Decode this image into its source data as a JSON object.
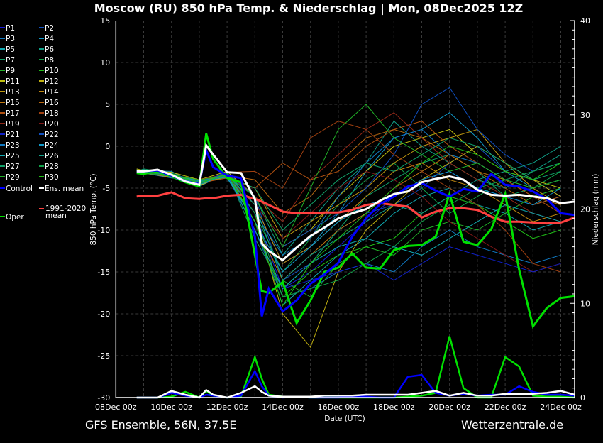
{
  "title": "Moscow  (RU)  850 hPa Temp. & Niederschlag | Mon, 08Dec2025 12Z",
  "footer_left": "GFS Ensemble, 56N, 37.5E",
  "footer_right": "Wetterzentrale.de",
  "chart_data": {
    "type": "line",
    "title": "Moscow  (RU)  850 hPa Temp. & Niederschlag | Mon, 08Dec2025 12Z",
    "xlabel": "Date (UTC)",
    "ylabel": "850 hPa Temp. (°C)",
    "y2label": "Niederschlag (mm)",
    "ylim": [
      -30,
      15
    ],
    "y2lim": [
      0,
      40
    ],
    "yticks": [
      "15",
      "10",
      "5",
      "0",
      "-5",
      "-10",
      "-15",
      "-20",
      "-25",
      "-30"
    ],
    "y2ticks": [
      "40",
      "30",
      "20",
      "10",
      "0"
    ],
    "xticks": [
      "08Dec 00z",
      "10Dec 00z",
      "12Dec 00z",
      "14Dec 00z",
      "16Dec 00z",
      "18Dec 00z",
      "20Dec 00z",
      "22Dec 00z",
      "24Dec 00z"
    ],
    "grid": true,
    "legend_position": "left",
    "x": [
      "08Dec 18z",
      "09Dec 00z",
      "09Dec 12z",
      "10Dec 00z",
      "10Dec 12z",
      "11Dec 00z",
      "11Dec 06z",
      "11Dec 12z",
      "12Dec 00z",
      "12Dec 12z",
      "13Dec 00z",
      "13Dec 06z",
      "13Dec 12z",
      "14Dec 00z",
      "14Dec 12z",
      "15Dec 00z",
      "15Dec 12z",
      "16Dec 00z",
      "16Dec 12z",
      "17Dec 00z",
      "17Dec 12z",
      "18Dec 00z",
      "18Dec 12z",
      "19Dec 00z",
      "19Dec 12z",
      "20Dec 00z",
      "20Dec 12z",
      "21Dec 00z",
      "21Dec 12z",
      "22Dec 00z",
      "22Dec 12z",
      "23Dec 00z",
      "23Dec 12z",
      "24Dec 00z",
      "24Dec 12z"
    ],
    "series": [
      {
        "name": "1991-2020 mean",
        "color": "#ff4040",
        "temp": [
          -6.0,
          -5.9,
          -5.9,
          -5.5,
          -6.2,
          -6.3,
          -6.2,
          -6.2,
          -5.9,
          -5.8,
          -6.3,
          -6.6,
          -7.0,
          -7.8,
          -8.0,
          -8.0,
          -7.9,
          -7.9,
          -7.6,
          -7.0,
          -6.8,
          -7.0,
          -7.2,
          -8.5,
          -7.8,
          -7.4,
          -7.4,
          -7.6,
          -8.4,
          -9.0,
          -9.0,
          -9.1,
          -9.2,
          -9.1,
          -8.5
        ]
      },
      {
        "name": "Oper",
        "color": "#00e000",
        "temp": [
          -3.2,
          -3.3,
          -3.0,
          -3.6,
          -4.3,
          -4.8,
          1.5,
          -1.5,
          -3.8,
          -4.3,
          -13.0,
          -17.3,
          -17.5,
          -16.2,
          -21.1,
          -18.4,
          -15.0,
          -14.5,
          -12.8,
          -14.5,
          -14.6,
          -12.4,
          -11.9,
          -11.8,
          -10.8,
          -5.7,
          -11.4,
          -11.8,
          -9.9,
          -5.7,
          -14.7,
          -21.5,
          -19.3,
          -18.1,
          -17.9
        ],
        "precip": [
          0,
          0,
          0,
          0.1,
          0.6,
          0,
          0.7,
          0.2,
          0,
          0.1,
          4.3,
          2,
          0.3,
          0.1,
          0.1,
          0,
          0,
          0,
          0,
          0,
          0,
          0,
          0.1,
          0.2,
          0.5,
          6.5,
          1,
          0,
          0,
          4.3,
          3.3,
          0.2,
          0.1,
          0.1,
          0
        ]
      },
      {
        "name": "Control",
        "color": "#0000ff",
        "temp": [
          -3.0,
          -3.0,
          -2.9,
          -3.5,
          -4.2,
          -4.5,
          -0.5,
          -2.5,
          -3.5,
          -3.8,
          -10.8,
          -20.3,
          -17.0,
          -19.7,
          -18.4,
          -16.4,
          -15.3,
          -13.9,
          -10.8,
          -8.6,
          -6.9,
          -6.0,
          -4.8,
          -4.4,
          -5.3,
          -6.0,
          -5.1,
          -5.4,
          -3.3,
          -4.6,
          -4.8,
          -5.4,
          -6.3,
          -8.0,
          -8.2
        ],
        "precip": [
          0,
          0,
          0,
          0.5,
          0.2,
          0,
          0.3,
          0.2,
          0,
          0.2,
          2.8,
          1.2,
          0.2,
          0,
          0.1,
          0,
          0,
          0,
          0.1,
          0.1,
          0,
          0,
          2.2,
          2.4,
          0.5,
          0.2,
          0.4,
          0.2,
          0.3,
          0.3,
          1.2,
          0.6,
          0.3,
          0.3,
          0.2
        ]
      },
      {
        "name": "Ens. mean",
        "color": "#ffffff",
        "temp": [
          -3.0,
          -3.0,
          -2.8,
          -3.4,
          -4.2,
          -4.6,
          0.1,
          -1.0,
          -3.1,
          -3.2,
          -6.3,
          -11.6,
          -12.5,
          -13.6,
          -12.1,
          -10.7,
          -9.7,
          -8.6,
          -8.0,
          -7.5,
          -6.5,
          -5.7,
          -5.4,
          -4.3,
          -3.9,
          -3.6,
          -4.0,
          -5.2,
          -5.8,
          -5.9,
          -5.8,
          -6.0,
          -6.2,
          -6.8,
          -6.6
        ],
        "precip": [
          0,
          0,
          0,
          0.7,
          0.3,
          0,
          0.8,
          0.3,
          0,
          0.5,
          1.2,
          0.6,
          0.2,
          0.1,
          0.1,
          0.1,
          0.2,
          0.2,
          0.2,
          0.3,
          0.3,
          0.3,
          0.3,
          0.5,
          0.7,
          0.2,
          0.5,
          0.2,
          0.2,
          0.4,
          0.4,
          0.4,
          0.5,
          0.7,
          0.3
        ]
      }
    ],
    "members_x": [
      "08Dec 18z",
      "09Dec 00z",
      "10Dec 00z",
      "11Dec 00z",
      "12Dec 00z",
      "13Dec 00z",
      "14Dec 00z",
      "15Dec 00z",
      "16Dec 00z",
      "17Dec 00z",
      "18Dec 00z",
      "19Dec 00z",
      "20Dec 00z",
      "21Dec 00z",
      "22Dec 00z",
      "23Dec 00z",
      "24Dec 00z"
    ],
    "members": [
      {
        "name": "P1",
        "color": "#1818d8",
        "temp": [
          -3,
          -2.8,
          -3.5,
          -4.2,
          -3.3,
          -8,
          -17,
          -15,
          -12,
          -9,
          -6,
          -4,
          -3,
          -5,
          -6,
          -7,
          -6
        ]
      },
      {
        "name": "P2",
        "color": "#1050c0",
        "temp": [
          -2.9,
          -3,
          -3.3,
          -4.5,
          -3,
          -6,
          -16,
          -14,
          -10,
          -8,
          -7,
          -5,
          -2,
          0,
          -3,
          -4,
          -6
        ]
      },
      {
        "name": "P3",
        "color": "#1078c0",
        "temp": [
          -3.1,
          -3.2,
          -3.8,
          -4,
          -3.5,
          -10,
          -18,
          -17,
          -15,
          -14,
          -15,
          -12,
          -10,
          -12,
          -13,
          -14,
          -13
        ]
      },
      {
        "name": "P4",
        "color": "#1098c8",
        "temp": [
          -2.8,
          -2.9,
          -3,
          -4.8,
          -3.2,
          -7,
          -14,
          -12,
          -8,
          -3,
          1,
          2,
          4,
          1,
          -3,
          -5,
          -4
        ]
      },
      {
        "name": "P5",
        "color": "#10a8b0",
        "temp": [
          -3,
          -3.1,
          -3.6,
          -4.3,
          -3.8,
          -9,
          -19,
          -16,
          -13,
          -11,
          -8,
          -6,
          -5,
          -7,
          -8,
          -10,
          -9
        ]
      },
      {
        "name": "P6",
        "color": "#10a088",
        "temp": [
          -3.2,
          -3,
          -3.4,
          -4,
          -3.6,
          -6,
          -13,
          -9,
          -5,
          -2,
          3,
          0,
          -2,
          -4,
          -5,
          -3,
          -1
        ]
      },
      {
        "name": "P7",
        "color": "#10a068",
        "temp": [
          -3,
          -2.7,
          -3.2,
          -4.6,
          -3.1,
          -11,
          -17,
          -14,
          -10,
          -6,
          -4,
          -2,
          -1,
          -3,
          -6,
          -5,
          -4
        ]
      },
      {
        "name": "P8",
        "color": "#10a048",
        "temp": [
          -2.9,
          -3.1,
          -3.5,
          -4.1,
          -3.4,
          -8,
          -15,
          -11,
          -7,
          -4,
          -2,
          -5,
          -8,
          -6,
          -4,
          -5,
          -3
        ]
      },
      {
        "name": "P9",
        "color": "#20b028",
        "temp": [
          -3.1,
          -3,
          -3.3,
          -4.4,
          -3.7,
          -7,
          -16,
          -18,
          -14,
          -12,
          -13,
          -10,
          -9,
          -10,
          -8,
          -6,
          -5
        ]
      },
      {
        "name": "P10",
        "color": "#20c018",
        "temp": [
          -3,
          -3.2,
          -3.6,
          -4.2,
          -3.5,
          -9,
          -18,
          -15,
          -13,
          -12,
          -11,
          -8,
          -6,
          -7,
          -9,
          -11,
          -10
        ]
      },
      {
        "name": "P11",
        "color": "#c0c010",
        "temp": [
          -2.7,
          -2.9,
          -3.1,
          -4,
          -3,
          -6,
          -12,
          -10,
          -6,
          -3,
          0,
          1,
          2,
          -1,
          -3,
          -4,
          -5
        ]
      },
      {
        "name": "P12",
        "color": "#c0b010",
        "temp": [
          -2.8,
          -3,
          -3.4,
          -4.7,
          -3.3,
          -8,
          -20,
          -24,
          -15,
          -10,
          -7,
          -4,
          -2,
          0,
          -2,
          -4,
          -6
        ]
      },
      {
        "name": "P13",
        "color": "#c09810",
        "temp": [
          -3,
          -3.1,
          -3.5,
          -4.5,
          -3.6,
          -5,
          -11,
          -9,
          -7,
          -5,
          -2,
          0,
          1,
          2,
          -2,
          -5,
          -7
        ]
      },
      {
        "name": "P14",
        "color": "#c08810",
        "temp": [
          -3.1,
          -3.2,
          -3.7,
          -4.2,
          -3.4,
          -7,
          -14,
          -12,
          -9,
          -6,
          -3,
          -2,
          -4,
          -5,
          -7,
          -9,
          -8
        ]
      },
      {
        "name": "P15",
        "color": "#c07810",
        "temp": [
          -2.9,
          -3,
          -3.3,
          -4.3,
          -3.2,
          -9,
          -16,
          -13,
          -10,
          -8,
          -5,
          -3,
          -1,
          -3,
          -4,
          -6,
          -7
        ]
      },
      {
        "name": "P16",
        "color": "#b86810",
        "temp": [
          -3,
          -2.8,
          -3.4,
          -4.1,
          -3.5,
          -4,
          -8,
          -6,
          -2,
          1,
          2,
          1,
          -1,
          -3,
          -5,
          -7,
          -6
        ]
      },
      {
        "name": "P17",
        "color": "#b05010",
        "temp": [
          -3.2,
          -3.1,
          -3.6,
          -4.4,
          -3.8,
          -5,
          -2,
          -4,
          -3,
          0,
          2,
          3,
          0,
          -2,
          -4,
          -6,
          -8
        ]
      },
      {
        "name": "P18",
        "color": "#a04010",
        "temp": [
          -3,
          -3,
          -3.2,
          -4.6,
          -3.1,
          -3,
          -5,
          1,
          3,
          2,
          -1,
          -3,
          -5,
          -7,
          -10,
          -14,
          -15
        ]
      },
      {
        "name": "P19",
        "color": "#902818",
        "temp": [
          -2.8,
          -2.9,
          -3.5,
          -4,
          -3.3,
          -6,
          -9,
          -4,
          -1,
          2,
          4,
          1,
          -2,
          -4,
          -6,
          -8,
          -9
        ]
      },
      {
        "name": "P20",
        "color": "#801818",
        "temp": [
          -3.1,
          -3.2,
          -3.4,
          -4.3,
          -3.6,
          -7,
          -11,
          -8,
          -5,
          -3,
          -4,
          -6,
          -9,
          -11,
          -13,
          -15,
          -14
        ]
      },
      {
        "name": "P21",
        "color": "#1020c8",
        "temp": [
          -3,
          -3,
          -3.6,
          -4.5,
          -3.4,
          -10,
          -17,
          -16,
          -15,
          -14,
          -16,
          -14,
          -12,
          -13,
          -14,
          -15,
          -14
        ]
      },
      {
        "name": "P22",
        "color": "#1050c0",
        "temp": [
          -2.9,
          -3.1,
          -3.3,
          -4.2,
          -3.2,
          -6,
          -12,
          -10,
          -8,
          -5,
          -1,
          5,
          7,
          2,
          -1,
          -3,
          -2
        ]
      },
      {
        "name": "P23",
        "color": "#1078c0",
        "temp": [
          -3,
          -2.8,
          -3.4,
          -4.4,
          -3.5,
          -8,
          -13,
          -11,
          -6,
          -2,
          1,
          2,
          -1,
          -2,
          -4,
          -3,
          -2
        ]
      },
      {
        "name": "P24",
        "color": "#1098c8",
        "temp": [
          -3.2,
          -3,
          -3.5,
          -4.1,
          -3.7,
          -9,
          -15,
          -12,
          -9,
          -7,
          -6,
          -4,
          -3,
          -5,
          -6,
          -7,
          -5
        ]
      },
      {
        "name": "P25",
        "color": "#10a8b0",
        "temp": [
          -3,
          -3.1,
          -3.3,
          -4.6,
          -3.3,
          -10,
          -17,
          -14,
          -12,
          -11,
          -12,
          -13,
          -11,
          -9,
          -7,
          -8,
          -9
        ]
      },
      {
        "name": "P26",
        "color": "#10a088",
        "temp": [
          -2.8,
          -3,
          -3.4,
          -4.3,
          -3.4,
          -7,
          -16,
          -13,
          -11,
          -9,
          -7,
          -8,
          -6,
          -4,
          -3,
          -2,
          0
        ]
      },
      {
        "name": "P27",
        "color": "#10a068",
        "temp": [
          -3.1,
          -3.2,
          -3.6,
          -4.2,
          -3.6,
          -5,
          -10,
          -7,
          -4,
          -2,
          -3,
          -1,
          1,
          0,
          -2,
          -4,
          -3
        ]
      },
      {
        "name": "P28",
        "color": "#10a048",
        "temp": [
          -3,
          -3,
          -3.2,
          -4.5,
          -3.2,
          -8,
          -18,
          -17,
          -16,
          -14,
          -12,
          -9,
          -7,
          -5,
          -4,
          -3,
          -2
        ]
      },
      {
        "name": "P29",
        "color": "#20b028",
        "temp": [
          -2.9,
          -3.1,
          -3.5,
          -4,
          -3.5,
          -6,
          -12,
          -5,
          2,
          5,
          1,
          -1,
          -3,
          -2,
          -4,
          -5,
          -4
        ]
      },
      {
        "name": "P30",
        "color": "#20c018",
        "temp": [
          -3,
          -2.9,
          -3.3,
          -4.4,
          -3.3,
          -9,
          -19,
          -14,
          -11,
          -8,
          -5,
          -2,
          0,
          -1,
          -3,
          -4,
          -2
        ]
      }
    ]
  }
}
